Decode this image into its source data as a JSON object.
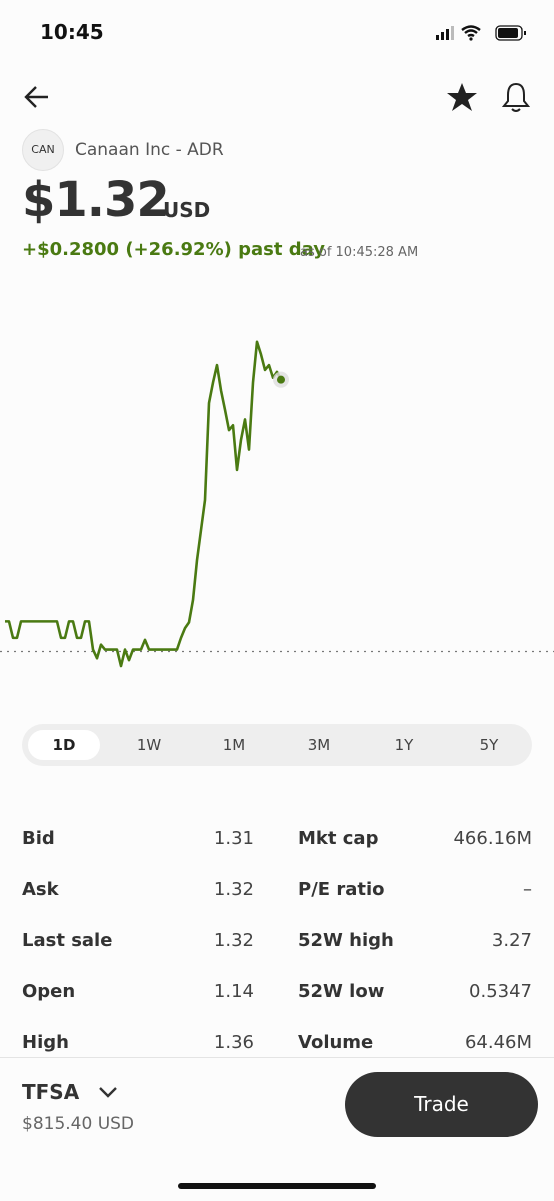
{
  "status_bar": {
    "time": "10:45"
  },
  "stock": {
    "ticker": "CAN",
    "name": "Canaan Inc - ADR",
    "price": "$1.32",
    "currency": "USD",
    "change": "+$0.2800 (+26.92%) past day",
    "as_of": "as of 10:45:28 AM"
  },
  "chart_data": {
    "type": "line",
    "color": "#4a7a12",
    "reference_value": 1.04,
    "ylim": [
      0.99,
      1.4
    ],
    "values": [
      1.071,
      1.071,
      1.054,
      1.054,
      1.071,
      1.071,
      1.071,
      1.071,
      1.071,
      1.071,
      1.071,
      1.071,
      1.071,
      1.071,
      1.054,
      1.054,
      1.071,
      1.071,
      1.054,
      1.054,
      1.071,
      1.071,
      1.042,
      1.033,
      1.047,
      1.042,
      1.042,
      1.042,
      1.042,
      1.025,
      1.042,
      1.031,
      1.042,
      1.042,
      1.042,
      1.052,
      1.042,
      1.042,
      1.042,
      1.042,
      1.042,
      1.042,
      1.042,
      1.042,
      1.054,
      1.064,
      1.07,
      1.093,
      1.134,
      1.165,
      1.196,
      1.296,
      1.317,
      1.335,
      1.309,
      1.289,
      1.268,
      1.273,
      1.227,
      1.258,
      1.279,
      1.248,
      1.317,
      1.359,
      1.346,
      1.33,
      1.335,
      1.322,
      1.328,
      1.32
    ]
  },
  "range_tabs": {
    "options": [
      "1D",
      "1W",
      "1M",
      "3M",
      "1Y",
      "5Y"
    ],
    "selected": "1D"
  },
  "stats": {
    "left": [
      {
        "label": "Bid",
        "value": "1.31"
      },
      {
        "label": "Ask",
        "value": "1.32"
      },
      {
        "label": "Last sale",
        "value": "1.32"
      },
      {
        "label": "Open",
        "value": "1.14"
      },
      {
        "label": "High",
        "value": "1.36"
      }
    ],
    "right": [
      {
        "label": "Mkt cap",
        "value": "466.16M"
      },
      {
        "label": "P/E ratio",
        "value": "–"
      },
      {
        "label": "52W high",
        "value": "3.27"
      },
      {
        "label": "52W low",
        "value": "0.5347"
      },
      {
        "label": "Volume",
        "value": "64.46M"
      }
    ]
  },
  "footer": {
    "account": "TFSA",
    "balance": "$815.40 USD",
    "trade_button": "Trade"
  }
}
